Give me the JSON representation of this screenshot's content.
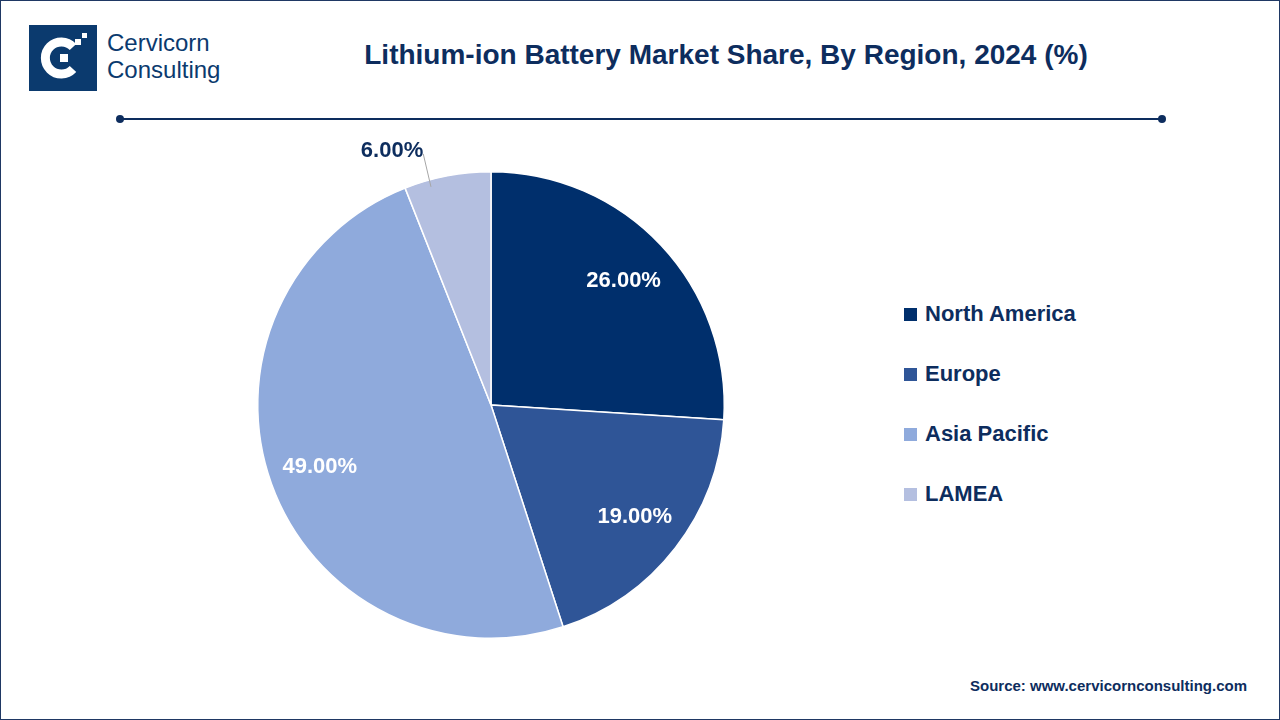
{
  "chart_data": {
    "type": "pie",
    "title": "Lithium-ion Battery Market Share, By Region, 2024 (%)",
    "categories": [
      "North America",
      "Europe",
      "Asia Pacific",
      "LAMEA"
    ],
    "values": [
      26,
      19,
      49,
      6
    ],
    "value_labels": [
      "26.00%",
      "19.00%",
      "49.00%",
      "6.00%"
    ],
    "colors": [
      "#002f6c",
      "#2f5597",
      "#8faadc",
      "#b4bfe0"
    ],
    "data_labels": true,
    "legend": "right"
  },
  "logo": {
    "lines": [
      "Cervicorn",
      "Consulting"
    ]
  },
  "source": "Source: www.cervicornconsulting.com"
}
